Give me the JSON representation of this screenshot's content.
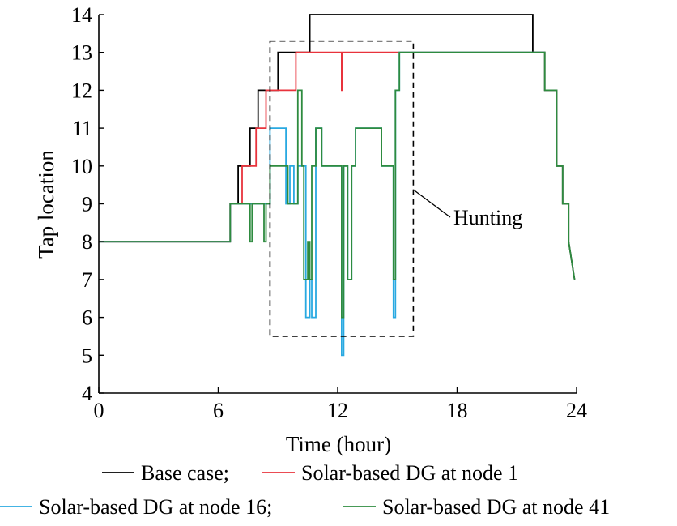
{
  "chart_data": {
    "type": "line",
    "title": "",
    "xlabel": "Time (hour)",
    "ylabel": "Tap location",
    "xlim": [
      0,
      24
    ],
    "ylim": [
      4,
      14
    ],
    "xticks": [
      0,
      6,
      12,
      18,
      24
    ],
    "yticks": [
      4,
      5,
      6,
      7,
      8,
      9,
      10,
      11,
      12,
      13,
      14
    ],
    "grid": false,
    "legend_position": "bottom",
    "annotation": {
      "text": "Hunting",
      "box_x": [
        8.6,
        15.8
      ],
      "box_y": [
        5.5,
        13.3
      ]
    },
    "series": [
      {
        "name": "Base case",
        "color": "#000000",
        "x": [
          0,
          6.6,
          6.6,
          7.0,
          7.0,
          7.6,
          7.6,
          8.0,
          8.0,
          8.5,
          8.5,
          9.0,
          9.0,
          10.6,
          10.6,
          21.8,
          21.8,
          22.4,
          22.4,
          23.0,
          23.0,
          23.3,
          23.3,
          23.6,
          23.6,
          23.9
        ],
        "y": [
          8,
          8,
          9,
          9,
          10,
          10,
          11,
          11,
          12,
          12,
          12,
          12,
          13,
          13,
          14,
          14,
          13,
          13,
          12,
          12,
          10,
          10,
          9,
          9,
          8,
          7
        ]
      },
      {
        "name": "Solar-based DG at node 1",
        "color": "#e8333c",
        "x": [
          0,
          6.6,
          6.6,
          7.2,
          7.2,
          7.9,
          7.9,
          8.4,
          8.4,
          9.9,
          9.9,
          12.2,
          12.2,
          12.25,
          12.25,
          16.8,
          16.8,
          22.4
        ],
        "y": [
          8,
          8,
          9,
          9,
          10,
          10,
          11,
          11,
          12,
          12,
          13,
          13,
          12,
          12,
          13,
          13,
          13,
          13
        ]
      },
      {
        "name": "Solar-based DG at node 16",
        "color": "#29a9e1",
        "x": [
          0,
          6.6,
          6.6,
          8.6,
          8.6,
          9.4,
          9.4,
          9.6,
          9.6,
          9.8,
          9.8,
          10.0,
          10.0,
          10.4,
          10.4,
          10.6,
          10.6,
          10.7,
          10.7,
          10.9,
          10.9,
          11.2,
          11.2,
          12.2,
          12.2,
          12.3,
          12.3,
          12.5,
          12.5,
          12.7,
          12.7,
          12.9,
          12.9,
          14.2,
          14.2,
          14.8,
          14.8,
          14.9,
          14.9,
          15.1,
          15.1,
          16.8,
          16.8,
          22.4
        ],
        "y": [
          8,
          8,
          9,
          9,
          11,
          11,
          9,
          9,
          10,
          10,
          9,
          9,
          10,
          10,
          6,
          6,
          7,
          7,
          6,
          6,
          11,
          11,
          10,
          10,
          5,
          5,
          10,
          10,
          7,
          7,
          10,
          10,
          11,
          11,
          10,
          10,
          6,
          6,
          12,
          12,
          13,
          13,
          13,
          13
        ]
      },
      {
        "name": "Solar-based DG at node 41",
        "color": "#2e8b3f",
        "x": [
          0,
          6.6,
          6.6,
          7.6,
          7.6,
          7.7,
          7.7,
          8.3,
          8.3,
          8.4,
          8.4,
          8.6,
          8.6,
          9.5,
          9.5,
          10.0,
          10.0,
          10.2,
          10.2,
          10.3,
          10.3,
          10.5,
          10.5,
          10.6,
          10.6,
          10.7,
          10.7,
          10.9,
          10.9,
          11.2,
          11.2,
          12.2,
          12.2,
          12.3,
          12.3,
          12.5,
          12.5,
          12.7,
          12.7,
          12.9,
          12.9,
          14.2,
          14.2,
          14.8,
          14.8,
          14.9,
          14.9,
          15.1,
          15.1,
          16.8,
          16.8,
          22.4,
          22.4,
          23.0,
          23.0,
          23.3,
          23.3,
          23.6,
          23.6,
          23.9
        ],
        "y": [
          8,
          8,
          9,
          9,
          8,
          8,
          9,
          9,
          8,
          8,
          9,
          9,
          10,
          10,
          9,
          9,
          12,
          12,
          10,
          10,
          7,
          7,
          8,
          8,
          7,
          7,
          10,
          10,
          11,
          11,
          10,
          10,
          6,
          6,
          10,
          10,
          7,
          7,
          10,
          10,
          11,
          11,
          10,
          10,
          7,
          7,
          12,
          12,
          13,
          13,
          13,
          13,
          12,
          12,
          10,
          10,
          9,
          9,
          8,
          7
        ]
      }
    ]
  }
}
